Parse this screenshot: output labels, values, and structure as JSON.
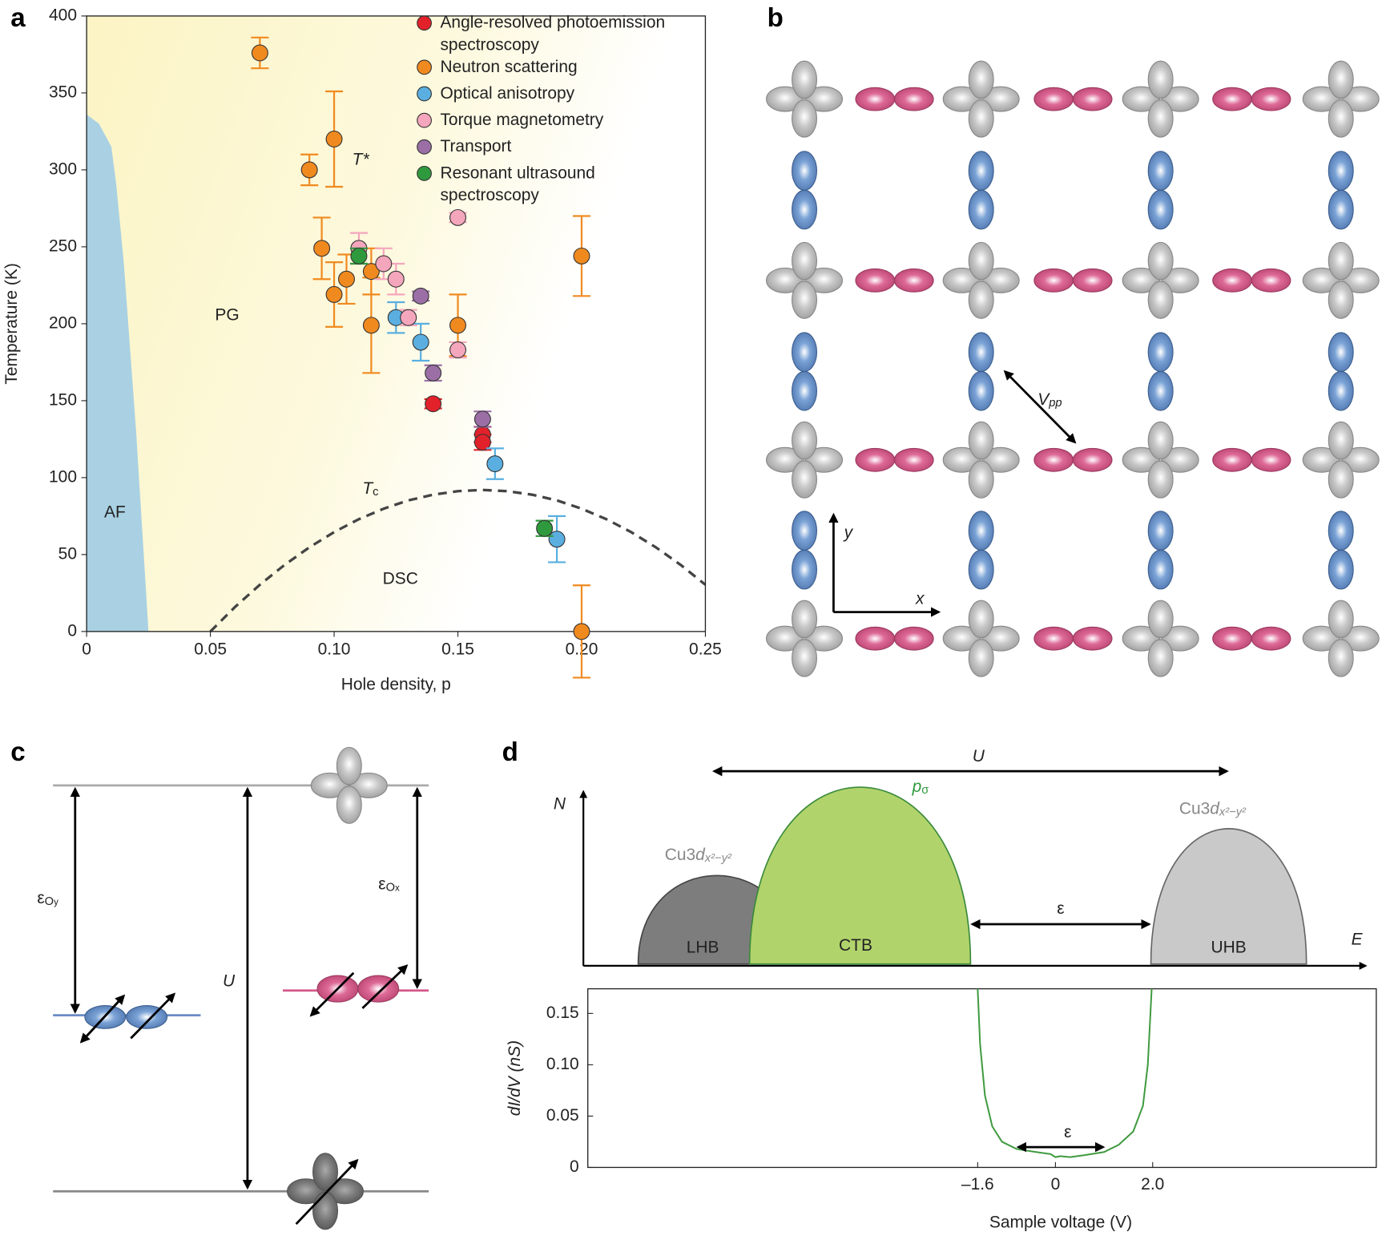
{
  "panel_labels": [
    "a",
    "b",
    "c",
    "d"
  ],
  "chart_data": [
    {
      "type": "scatter",
      "x_label": "Hole density, p",
      "y_label": "Temperature (K)",
      "xlim": [
        0,
        0.25
      ],
      "ylim": [
        0,
        400
      ],
      "xticks": [
        0,
        0.05,
        {
          "value": 0.1,
          "label": "0.10"
        },
        0.15,
        {
          "value": 0.2,
          "label": "0.20"
        },
        0.25
      ],
      "yticks": [
        0,
        50,
        100,
        150,
        200,
        250,
        300,
        350,
        400
      ],
      "series": [
        {
          "name": "Angle-resolved photoemission spectroscopy",
          "color": "#e3212b",
          "x": [
            0.14,
            0.16,
            0.16
          ],
          "values": [
            148,
            128,
            123
          ],
          "errors": [
            3,
            5,
            5
          ]
        },
        {
          "name": "Neutron scattering",
          "color": "#f08a1f",
          "x": [
            0.07,
            0.09,
            0.1,
            0.095,
            0.1,
            0.105,
            0.115,
            0.115,
            0.15,
            0.2,
            0.2
          ],
          "values": [
            376,
            300,
            320,
            249,
            219,
            229,
            199,
            234,
            199,
            244,
            0
          ],
          "errors": [
            10,
            10,
            31,
            20,
            21,
            16,
            31,
            15,
            20,
            26,
            30
          ]
        },
        {
          "name": "Optical anisotropy",
          "color": "#5aafe0",
          "x": [
            0.125,
            0.135,
            0.165,
            0.19
          ],
          "values": [
            204,
            188,
            109,
            60
          ],
          "errors": [
            10,
            12,
            10,
            15
          ]
        },
        {
          "name": "Torque magnetometry",
          "color": "#f4a6bd",
          "x": [
            0.11,
            0.12,
            0.125,
            0.13,
            0.15,
            0.15
          ],
          "values": [
            249,
            239,
            229,
            204,
            183,
            269
          ],
          "errors": [
            10,
            10,
            10,
            5,
            5,
            3
          ]
        },
        {
          "name": "Transport",
          "color": "#9b6fa6",
          "x": [
            0.135,
            0.14,
            0.16
          ],
          "values": [
            218,
            168,
            138
          ],
          "errors": [
            3,
            5,
            5
          ]
        },
        {
          "name": "Resonant ultrasound spectroscopy",
          "color": "#2f9a3d",
          "x": [
            0.11,
            0.185
          ],
          "values": [
            244,
            67
          ],
          "errors": [
            5,
            5
          ]
        }
      ],
      "area": {
        "name": "AF",
        "color": "#a9d1e3",
        "x": [
          0,
          0.005,
          0.01,
          0.012,
          0.015,
          0.02,
          0.025
        ],
        "values": [
          336,
          330,
          315,
          290,
          240,
          130,
          0
        ]
      },
      "curve": {
        "label": [
          "T",
          "c"
        ],
        "x": [
          0.05,
          0.06,
          0.07,
          0.08,
          0.09,
          0.1,
          0.11,
          0.12,
          0.13,
          0.14,
          0.15,
          0.16,
          0.17,
          0.18,
          0.19,
          0.2,
          0.21,
          0.22,
          0.23,
          0.24,
          0.25
        ],
        "values": [
          0,
          16,
          30.4,
          43.3,
          54.7,
          64.6,
          73,
          79.8,
          85.2,
          88.9,
          91.2,
          92,
          91.2,
          88.9,
          85.2,
          79.8,
          73,
          64.6,
          54.7,
          43.3,
          30.4
        ]
      },
      "annotations": [
        "T*",
        "PG",
        "DSC"
      ]
    },
    {
      "type": "line",
      "y_label": "dI/dV (nS)",
      "x_label": "Sample voltage (V)",
      "color": "#3f9a3f",
      "xlim": [
        -9.62,
        6.6
      ],
      "ylim": [
        0,
        0.174
      ],
      "xticks": [
        {
          "value": -1.6,
          "label": "–1.6"
        },
        0,
        {
          "value": 2,
          "label": "2.0"
        }
      ],
      "yticks": [
        0,
        0.05,
        {
          "value": 0.1,
          "label": "0.10"
        },
        0.15
      ],
      "x": [
        -1.6,
        -1.55,
        -1.45,
        -1.3,
        -1.1,
        -0.8,
        -0.4,
        -0.1,
        0,
        0.1,
        0.3,
        0.6,
        1.0,
        1.3,
        1.6,
        1.8,
        1.9,
        1.98
      ],
      "values": [
        0.174,
        0.12,
        0.07,
        0.04,
        0.025,
        0.018,
        0.015,
        0.013,
        0.01,
        0.011,
        0.01,
        0.012,
        0.015,
        0.022,
        0.035,
        0.06,
        0.1,
        0.174
      ],
      "gap_label": "ε"
    }
  ],
  "panel_b": {
    "coupling": [
      "V",
      "pp"
    ],
    "axes": [
      "x",
      "y"
    ]
  },
  "panel_c": {
    "eps_oy": [
      "ε",
      "O",
      "y"
    ],
    "eps_ox": [
      "ε",
      "O",
      "x"
    ],
    "u": "U"
  },
  "panel_d": {
    "u": "U",
    "n_axis": "N",
    "e_axis": "E",
    "p_sigma": [
      "p",
      "σ"
    ],
    "cu_lower": [
      "Cu3",
      "d",
      "x²−y²"
    ],
    "cu_upper": [
      "Cu3",
      "d",
      "x²−y²"
    ],
    "bands": [
      "LHB",
      "CTB",
      "UHB"
    ],
    "gap": "ε"
  }
}
